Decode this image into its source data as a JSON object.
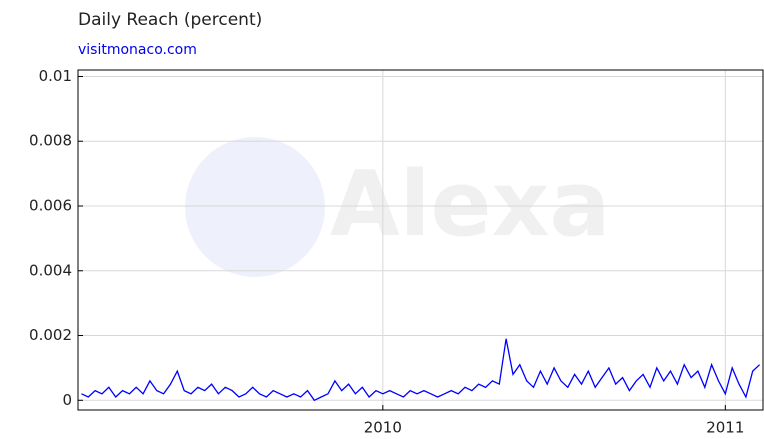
{
  "chart_data": {
    "type": "line",
    "title": "Daily Reach (percent)",
    "subtitle": "visitmonaco.com",
    "watermark": "Alexa",
    "x": [
      2009.12,
      2009.14,
      2009.16,
      2009.18,
      2009.2,
      2009.22,
      2009.24,
      2009.26,
      2009.28,
      2009.3,
      2009.32,
      2009.34,
      2009.36,
      2009.38,
      2009.4,
      2009.42,
      2009.44,
      2009.46,
      2009.48,
      2009.5,
      2009.52,
      2009.54,
      2009.56,
      2009.58,
      2009.6,
      2009.62,
      2009.64,
      2009.66,
      2009.68,
      2009.7,
      2009.72,
      2009.74,
      2009.76,
      2009.78,
      2009.8,
      2009.82,
      2009.84,
      2009.86,
      2009.88,
      2009.9,
      2009.92,
      2009.94,
      2009.96,
      2009.98,
      2010,
      2010.02,
      2010.04,
      2010.06,
      2010.08,
      2010.1,
      2010.12,
      2010.14,
      2010.16,
      2010.18,
      2010.2,
      2010.22,
      2010.24,
      2010.26,
      2010.28,
      2010.3,
      2010.32,
      2010.34,
      2010.36,
      2010.38,
      2010.4,
      2010.42,
      2010.44,
      2010.46,
      2010.48,
      2010.5,
      2010.52,
      2010.54,
      2010.56,
      2010.58,
      2010.6,
      2010.62,
      2010.64,
      2010.66,
      2010.68,
      2010.7,
      2010.72,
      2010.74,
      2010.76,
      2010.78,
      2010.8,
      2010.82,
      2010.84,
      2010.86,
      2010.88,
      2010.9,
      2010.92,
      2010.94,
      2010.96,
      2010.98,
      2011,
      2011.02,
      2011.04,
      2011.06,
      2011.08,
      2011.1
    ],
    "values": [
      0.0002,
      0.0001,
      0.0003,
      0.0002,
      0.0004,
      0.0001,
      0.0003,
      0.0002,
      0.0004,
      0.0002,
      0.0006,
      0.0003,
      0.0002,
      0.0005,
      0.0009,
      0.0003,
      0.0002,
      0.0004,
      0.0003,
      0.0005,
      0.0002,
      0.0004,
      0.0003,
      0.0001,
      0.0002,
      0.0004,
      0.0002,
      0.0001,
      0.0003,
      0.0002,
      0.0001,
      0.0002,
      0.0001,
      0.0003,
      0,
      0.0001,
      0.0002,
      0.0006,
      0.0003,
      0.0005,
      0.0002,
      0.0004,
      0.0001,
      0.0003,
      0.0002,
      0.0003,
      0.0002,
      0.0001,
      0.0003,
      0.0002,
      0.0003,
      0.0002,
      0.0001,
      0.0002,
      0.0003,
      0.0002,
      0.0004,
      0.0003,
      0.0005,
      0.0004,
      0.0006,
      0.0005,
      0.0019,
      0.0008,
      0.0011,
      0.0006,
      0.0004,
      0.0009,
      0.0005,
      0.001,
      0.0006,
      0.0004,
      0.0008,
      0.0005,
      0.0009,
      0.0004,
      0.0007,
      0.001,
      0.0005,
      0.0007,
      0.0003,
      0.0006,
      0.0008,
      0.0004,
      0.001,
      0.0006,
      0.0009,
      0.0005,
      0.0011,
      0.0007,
      0.0009,
      0.0004,
      0.0011,
      0.0006,
      0.0002,
      0.001,
      0.0005,
      0.0001,
      0.0009,
      0.0011
    ],
    "color": "#0000ff",
    "xlim": [
      2009.11,
      2011.11
    ],
    "xticks": [
      2010,
      2011
    ],
    "ylim": [
      -0.0003,
      0.0102
    ],
    "yticks": [
      0,
      0.002,
      0.004,
      0.006,
      0.008,
      0.01
    ],
    "grid": true
  }
}
